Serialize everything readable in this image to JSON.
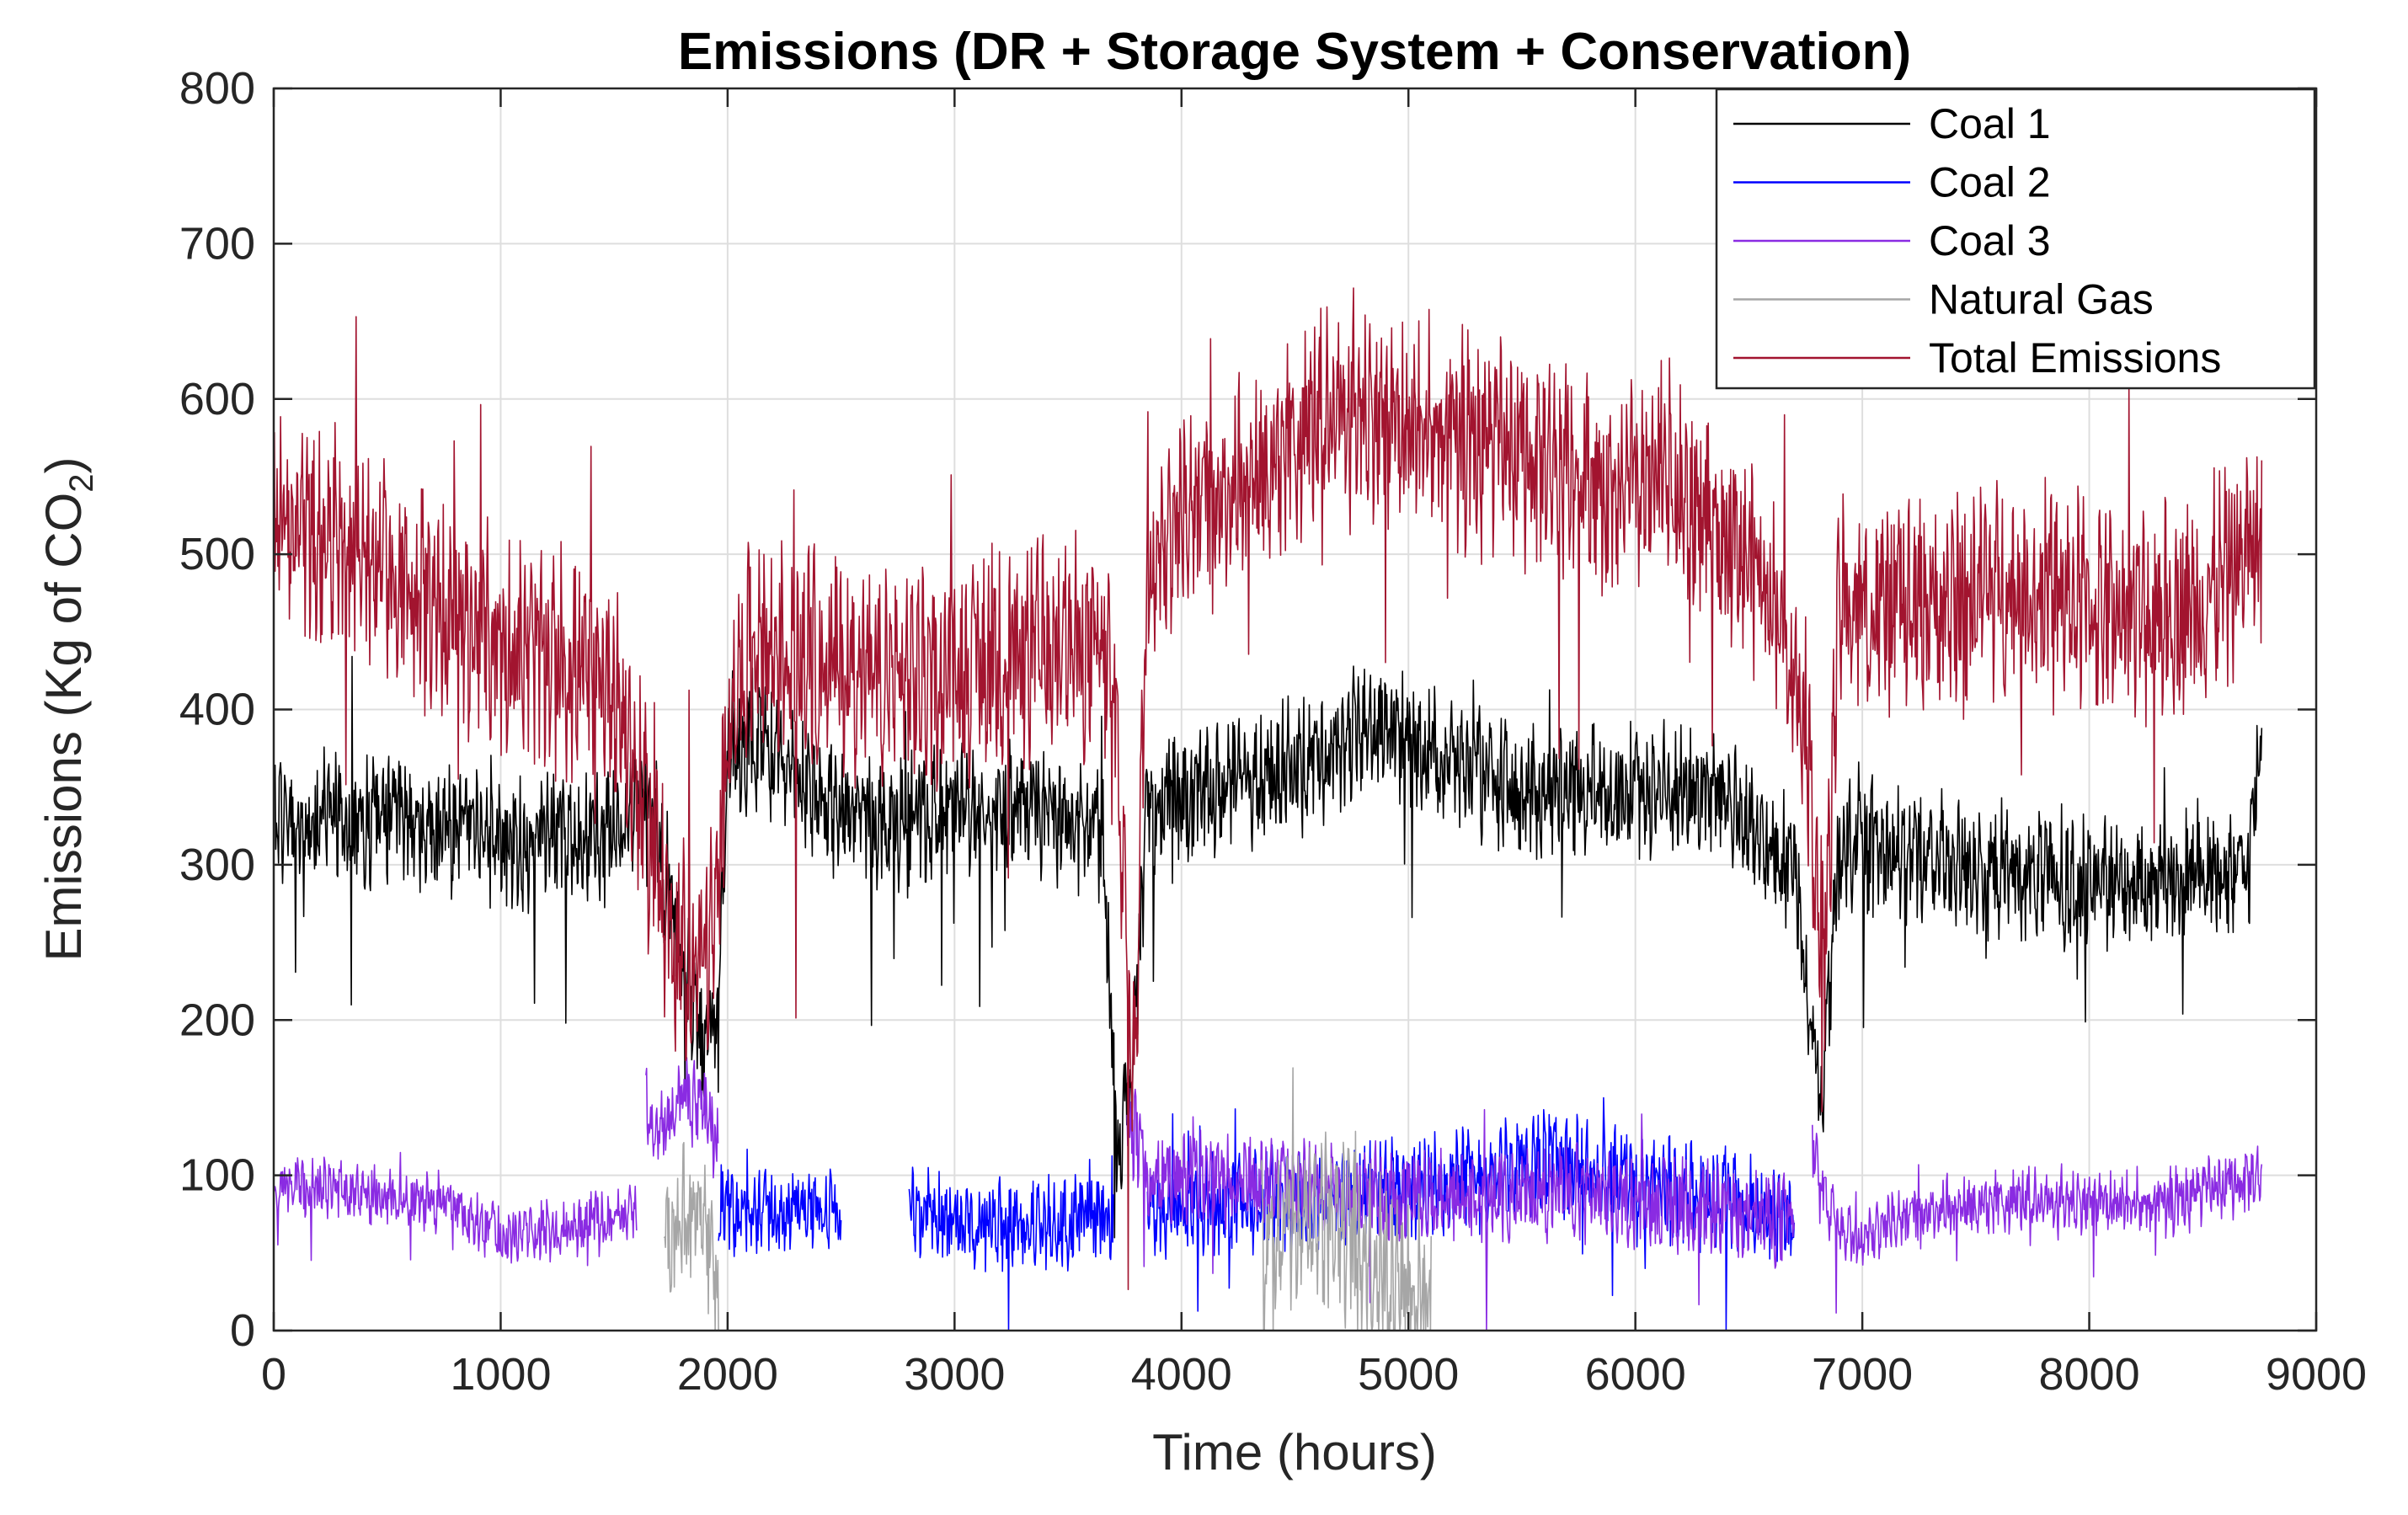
{
  "chart_data": {
    "type": "line",
    "title": "Emissions (DR + Storage System + Conservation)",
    "xlabel": "Time (hours)",
    "ylabel_main": "Emissions (Kg of CO",
    "ylabel_sub": "2",
    "ylabel_close": ")",
    "xlim": [
      0,
      9000
    ],
    "ylim": [
      0,
      800
    ],
    "xticks": [
      0,
      1000,
      2000,
      3000,
      4000,
      5000,
      6000,
      7000,
      8000,
      9000
    ],
    "yticks": [
      0,
      100,
      200,
      300,
      400,
      500,
      600,
      700,
      800
    ],
    "xtick_labels": [
      "0",
      "1000",
      "2000",
      "3000",
      "4000",
      "5000",
      "6000",
      "7000",
      "8000",
      "9000"
    ],
    "ytick_labels": [
      "0",
      "100",
      "200",
      "300",
      "400",
      "500",
      "600",
      "700",
      "800"
    ],
    "grid": true,
    "legend_position": "top-right",
    "hours": 8760,
    "series": [
      {
        "name": "Coal 1",
        "color": "#000000",
        "segments": [
          {
            "x": [
              0,
              500,
              1000,
              1500,
              1650,
              1800,
              1900,
              1960,
              2000,
              2200,
              2500,
              2800,
              3200,
              3650,
              3720,
              3780,
              3850,
              4300,
              4900,
              5500,
              6000,
              6400,
              6550,
              6700,
              6820,
              6900,
              7000,
              7500,
              8000,
              8400,
              8700,
              8760
            ],
            "y": [
              330,
              330,
              315,
              320,
              350,
              240,
              180,
              195,
              380,
              370,
              330,
              330,
              340,
              320,
              120,
              160,
              340,
              350,
              390,
              345,
              350,
              345,
              310,
              300,
              140,
              320,
              310,
              300,
              285,
              295,
              300,
              390
            ],
            "amp": 40
          }
        ]
      },
      {
        "name": "Coal 2",
        "color": "#0000ff",
        "segments": [
          {
            "x": [
              1960,
              2100,
              2300,
              2500
            ],
            "y": [
              80,
              75,
              80,
              75
            ],
            "amp": 25
          },
          {
            "x": [
              2800,
              3000,
              3300,
              3600,
              3700
            ],
            "y": [
              75,
              70,
              68,
              72,
              70
            ],
            "amp": 28
          },
          {
            "x": [
              3850,
              4500,
              5000,
              5600,
              6000,
              6400,
              6700
            ],
            "y": [
              80,
              85,
              90,
              110,
              95,
              85,
              70
            ],
            "amp": 30
          }
        ]
      },
      {
        "name": "Coal 3",
        "color": "#8a2be2",
        "segments": [
          {
            "x": [
              0,
              300,
              600,
              800,
              1000,
              1200,
              1400,
              1600
            ],
            "y": [
              95,
              90,
              85,
              80,
              60,
              65,
              70,
              75
            ],
            "amp": 18
          },
          {
            "x": [
              1640,
              1700,
              1800,
              1900,
              1960
            ],
            "y": [
              150,
              130,
              150,
              140,
              120
            ],
            "amp": 25
          },
          {
            "x": [
              3760,
              3850,
              4300,
              4800,
              5200,
              5700,
              6200,
              6700
            ],
            "y": [
              140,
              100,
              95,
              90,
              85,
              90,
              80,
              70
            ],
            "amp": 28
          },
          {
            "x": [
              6780,
              6850,
              6950,
              7300,
              7800,
              8300,
              8760
            ],
            "y": [
              120,
              80,
              60,
              80,
              85,
              80,
              100
            ],
            "amp": 20
          }
        ]
      },
      {
        "name": "Natural Gas",
        "color": "#a6a6a6",
        "segments": [
          {
            "x": [
              1720,
              1800,
              1900,
              1960
            ],
            "y": [
              55,
              75,
              65,
              40
            ],
            "amp": 45
          },
          {
            "x": [
              4350,
              4500,
              4700,
              4900,
              5100
            ],
            "y": [
              50,
              80,
              70,
              40,
              20
            ],
            "amp": 55
          }
        ]
      },
      {
        "name": "Total Emissions",
        "color": "#a2142f",
        "segments": [
          {
            "x": [
              0,
              300,
              600,
              900,
              1200,
              1500,
              1650,
              1750,
              1850,
              1950,
              2000,
              2100,
              2400,
              2800,
              3200,
              3500,
              3700,
              3780,
              3800,
              3850,
              4100,
              4400,
              4700,
              5000,
              5300,
              5600,
              6000,
              6300,
              6600,
              6750,
              6830,
              6900,
              7000,
              7300,
              7600,
              7900,
              8200,
              8500,
              8760
            ],
            "y": [
              520,
              510,
              480,
              450,
              430,
              420,
              320,
              260,
              230,
              260,
              400,
              440,
              430,
              420,
              430,
              440,
              430,
              180,
              200,
              500,
              540,
              560,
              600,
              580,
              570,
              560,
              540,
              530,
              480,
              400,
              230,
              470,
              460,
              470,
              480,
              470,
              460,
              470,
              510
            ],
            "amp": 65
          }
        ]
      }
    ]
  }
}
